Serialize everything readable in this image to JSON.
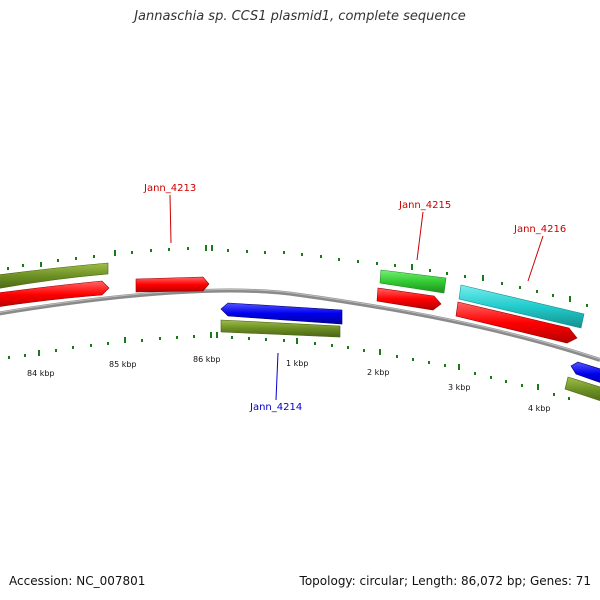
{
  "title": "Jannaschia sp. CCS1 plasmid1, complete sequence",
  "footer": {
    "accession": "Accession: NC_007801",
    "summary": "Topology: circular; Length: 86,072 bp; Genes: 71"
  },
  "scale_labels": [
    "84 kbp",
    "85 kbp",
    "86 kbp",
    "1 kbp",
    "2 kbp",
    "3 kbp",
    "4 kbp"
  ],
  "gene_labels": [
    {
      "text": "Jann_4213",
      "color": "#cc0000"
    },
    {
      "text": "Jann_4215",
      "color": "#cc0000"
    },
    {
      "text": "Jann_4216",
      "color": "#cc0000"
    },
    {
      "text": "Jann_4214",
      "color": "#0000cc"
    }
  ],
  "colors": {
    "backbone": "#8a8a8a",
    "cds_red": "#ff0000",
    "cds_blue": "#0000ee",
    "feature_olive": "#6b8e23",
    "feature_green": "#33cc33",
    "feature_cyan": "#22cccc",
    "tick_green": "#1a7a1a"
  }
}
